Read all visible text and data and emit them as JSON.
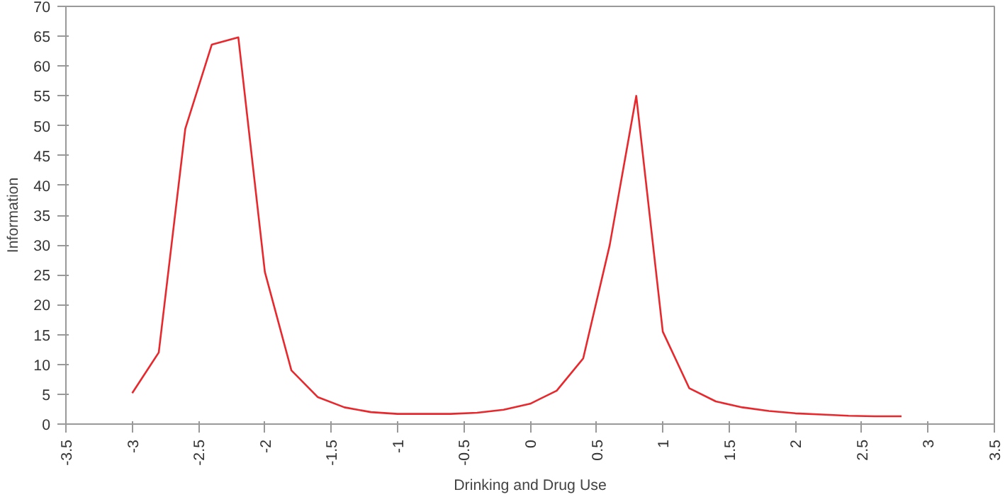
{
  "chart_data": {
    "type": "line",
    "xlabel": "Drinking and Drug Use",
    "ylabel": "Information",
    "x": [
      -3,
      -2.8,
      -2.6,
      -2.4,
      -2.2,
      -2.0,
      -1.8,
      -1.6,
      -1.4,
      -1.2,
      -1.0,
      -0.8,
      -0.6,
      -0.4,
      -0.2,
      0,
      0.2,
      0.4,
      0.6,
      0.8,
      1.0,
      1.2,
      1.4,
      1.6,
      1.8,
      2.0,
      2.2,
      2.4,
      2.6,
      2.8
    ],
    "series": [
      {
        "color": "#e8282c",
        "values": [
          5.2,
          12,
          49.5,
          63.6,
          64.8,
          25.5,
          9,
          4.5,
          2.8,
          2,
          1.7,
          1.7,
          1.7,
          1.9,
          2.4,
          3.4,
          5.6,
          11,
          30,
          55,
          15.5,
          6,
          3.8,
          2.8,
          2.2,
          1.8,
          1.6,
          1.4,
          1.3,
          1.3
        ]
      }
    ],
    "xlim": [
      -3.5,
      3.5
    ],
    "ylim": [
      0,
      70
    ],
    "xticks": [
      -3.5,
      -3,
      -2.5,
      -2,
      -1.5,
      -1,
      -0.5,
      0,
      0.5,
      1,
      1.5,
      2,
      2.5,
      3,
      3.5
    ],
    "yticks": [
      0,
      5,
      10,
      15,
      20,
      25,
      30,
      35,
      40,
      45,
      50,
      55,
      60,
      65,
      70
    ],
    "grid": false,
    "marker": "none",
    "line_style": "solid"
  }
}
